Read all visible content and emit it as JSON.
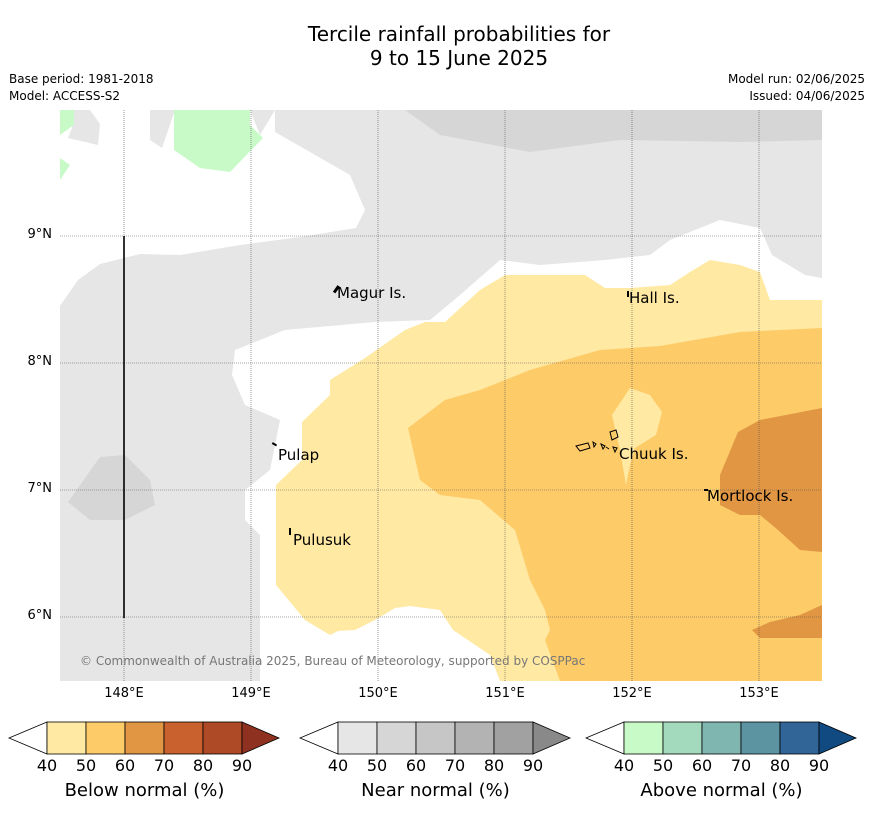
{
  "title_line1": "Tercile rainfall probabilities for",
  "title_line2": "9 to 15 June 2025",
  "base_period": "Base period: 1981-2018",
  "model": "Model: ACCESS-S2",
  "model_run": "Model run: 02/06/2025",
  "issued": "Issued: 04/06/2025",
  "copyright": "© Commonwealth of Australia 2025, Bureau of Meteorology, supported by COSPPac",
  "x_ticks": [
    "148°E",
    "149°E",
    "150°E",
    "151°E",
    "152°E",
    "153°E"
  ],
  "y_ticks": [
    "9°N",
    "8°N",
    "7°N",
    "6°N"
  ],
  "places": {
    "magur": "Magur Is.",
    "hall": "Hall Is.",
    "pulap": "Pulap",
    "chuuk": "Chuuk Is.",
    "mortlock": "Mortlock Is.",
    "pulusuk": "Pulusuk"
  },
  "colorbars": [
    {
      "label": "Below normal (%)",
      "ticks": [
        "40",
        "50",
        "60",
        "70",
        "80",
        "90"
      ],
      "colors": [
        "#ffe9a3",
        "#fdcb68",
        "#e09643",
        "#c9612e",
        "#ae4a26",
        "#8f3120"
      ]
    },
    {
      "label": "Near normal (%)",
      "ticks": [
        "40",
        "50",
        "60",
        "70",
        "80",
        "90"
      ],
      "colors": [
        "#e6e6e6",
        "#d6d6d6",
        "#c6c6c6",
        "#b3b3b3",
        "#a1a1a1",
        "#898989"
      ]
    },
    {
      "label": "Above normal (%)",
      "ticks": [
        "40",
        "50",
        "60",
        "70",
        "80",
        "90"
      ],
      "colors": [
        "#c8fac8",
        "#a3d9bd",
        "#7fb6b0",
        "#5c94a2",
        "#316597",
        "#114a80"
      ]
    }
  ],
  "map_colors": {
    "near_light": "#e6e6e6",
    "near_mid": "#d6d6d6",
    "below_40": "#ffe9a3",
    "below_50": "#fdcb68",
    "below_60": "#e09643",
    "above_40": "#c8fac8"
  }
}
